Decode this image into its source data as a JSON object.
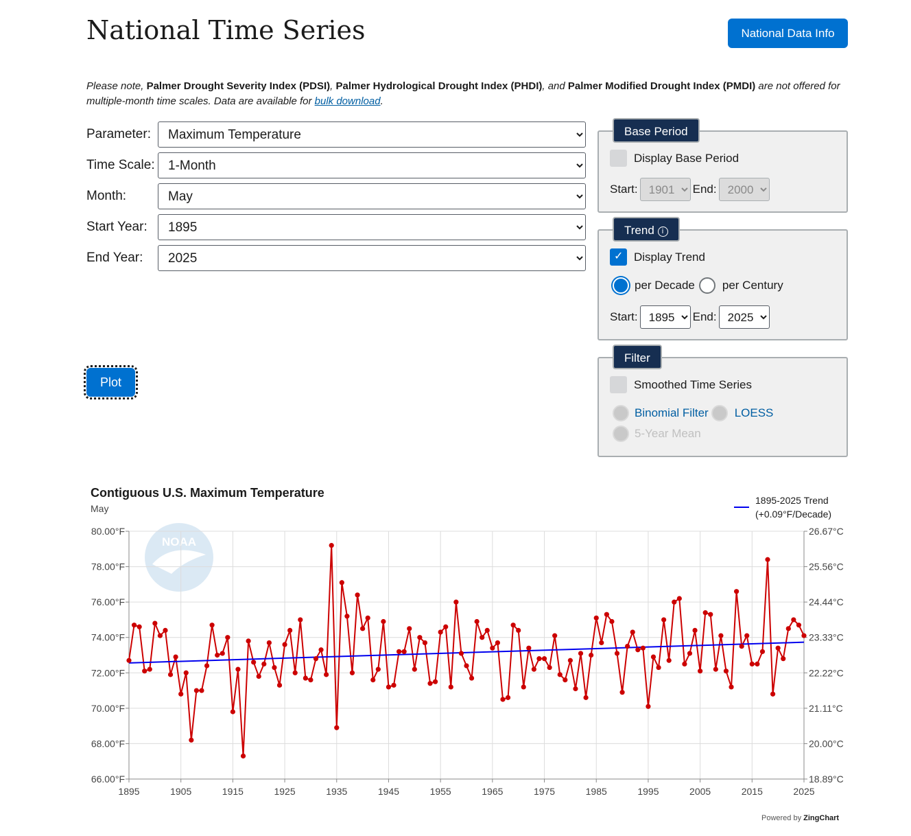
{
  "header": {
    "title": "National Time Series",
    "info_button": "National Data Info"
  },
  "note": {
    "part1": "Please note, ",
    "pdsi": "Palmer Drought Severity Index (PDSI)",
    "sep1": ", ",
    "phdi": "Palmer Hydrological Drought Index (PHDI)",
    "sep2": ", and ",
    "pmdi": "Palmer Modified Drought Index (PMDI)",
    "part2": " are not offered for multiple-month time scales. Data are available for ",
    "link": "bulk download",
    "end": "."
  },
  "form": {
    "parameter": {
      "label": "Parameter:",
      "value": "Maximum Temperature"
    },
    "time_scale": {
      "label": "Time Scale:",
      "value": "1-Month"
    },
    "month": {
      "label": "Month:",
      "value": "May"
    },
    "start_year": {
      "label": "Start Year:",
      "value": "1895"
    },
    "end_year": {
      "label": "End Year:",
      "value": "2025"
    },
    "plot_button": "Plot"
  },
  "base_period": {
    "tab": "Base Period",
    "checkbox": "Display Base Period",
    "checked": false,
    "start_label": "Start:",
    "start": "1901",
    "end_label": "End:",
    "end": "2000"
  },
  "trend": {
    "tab": "Trend",
    "info_icon": "info-circle-icon",
    "checkbox": "Display Trend",
    "checked": true,
    "per_decade": "per Decade",
    "per_century": "per Century",
    "selected": "per Decade",
    "start_label": "Start:",
    "start": "1895",
    "end_label": "End:",
    "end": "2025"
  },
  "filter": {
    "tab": "Filter",
    "checkbox": "Smoothed Time Series",
    "checked": false,
    "binomial": "Binomial Filter",
    "loess": "LOESS",
    "five_year": "5-Year Mean"
  },
  "chart_data": {
    "type": "line",
    "title": "Contiguous U.S. Maximum Temperature",
    "subtitle": "May",
    "xlim": [
      1895,
      2025
    ],
    "ylim": [
      66,
      80
    ],
    "x_ticks": [
      "1895",
      "1905",
      "1915",
      "1925",
      "1935",
      "1945",
      "1955",
      "1965",
      "1975",
      "1985",
      "1995",
      "2005",
      "2015",
      "2025"
    ],
    "y_ticks_left": [
      "66.00°F",
      "68.00°F",
      "70.00°F",
      "72.00°F",
      "74.00°F",
      "76.00°F",
      "78.00°F",
      "80.00°F"
    ],
    "y_ticks_right": [
      "18.89°C",
      "20.00°C",
      "21.11°C",
      "22.22°C",
      "23.33°C",
      "24.44°C",
      "25.56°C",
      "26.67°C"
    ],
    "grid": true,
    "legend_position": "top-right",
    "series": [
      {
        "name": "Maximum Temperature",
        "color": "#cc0000",
        "x_start": 1895,
        "values": [
          72.7,
          74.7,
          74.6,
          72.1,
          72.2,
          74.8,
          74.1,
          74.4,
          71.9,
          72.9,
          70.8,
          72.0,
          68.2,
          71.0,
          71.0,
          72.4,
          74.7,
          73.0,
          73.1,
          74.0,
          69.8,
          72.2,
          67.3,
          73.8,
          72.6,
          71.8,
          72.5,
          73.7,
          72.3,
          71.3,
          73.6,
          74.4,
          72.0,
          75.0,
          71.7,
          71.6,
          72.8,
          73.3,
          71.9,
          79.2,
          68.9,
          77.1,
          75.2,
          72.0,
          76.4,
          74.5,
          75.1,
          71.6,
          72.2,
          74.9,
          71.2,
          71.3,
          73.2,
          73.2,
          74.5,
          72.2,
          74.0,
          73.7,
          71.4,
          71.5,
          74.3,
          74.6,
          71.2,
          76.0,
          73.1,
          72.4,
          71.7,
          74.9,
          74.0,
          74.4,
          73.4,
          73.7,
          70.5,
          70.6,
          74.7,
          74.4,
          71.2,
          73.4,
          72.2,
          72.8,
          72.8,
          72.3,
          74.1,
          71.9,
          71.6,
          72.7,
          71.1,
          73.1,
          70.6,
          73.0,
          75.1,
          73.7,
          75.3,
          74.9,
          73.1,
          70.9,
          73.5,
          74.3,
          73.3,
          73.4,
          70.1,
          72.9,
          72.3,
          75.0,
          72.7,
          76.0,
          76.2,
          72.5,
          73.1,
          74.4,
          72.1,
          75.4,
          75.3,
          72.2,
          74.1,
          72.1,
          71.2,
          76.6,
          73.5,
          74.1,
          72.5,
          72.5,
          73.2,
          78.4,
          70.8,
          73.4,
          72.8,
          74.5,
          75.0,
          74.7,
          74.1
        ]
      },
      {
        "name": "1895-2025 Trend (+0.09°F/Decade)",
        "color": "#0000ee",
        "x": [
          1895,
          2025
        ],
        "values": [
          72.56,
          73.73
        ]
      }
    ]
  },
  "legend": {
    "line1": "1895-2025 Trend",
    "line2": "(+0.09°F/Decade)"
  },
  "footer": {
    "powered_by": "Powered by",
    "brand": "ZingChart"
  },
  "watermark": "NOAA"
}
